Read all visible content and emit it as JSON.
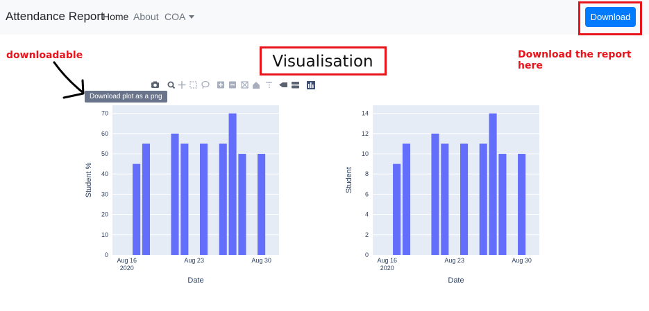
{
  "navbar": {
    "brand": "Attendance Report",
    "links": [
      {
        "label": "Home"
      },
      {
        "label": "About"
      },
      {
        "label": "COA"
      }
    ],
    "download_button": "Download"
  },
  "annotations": {
    "left": "downloadable",
    "right": "Download the report here"
  },
  "page_title": "Visualisation",
  "tooltip": "Download plot as a png",
  "modebar_icons": [
    "camera-icon",
    "zoom-icon",
    "pan-icon",
    "box-select-icon",
    "lasso-icon",
    "zoom-in-icon",
    "zoom-out-icon",
    "autoscale-icon",
    "reset-axes-icon",
    "spike-lines-icon",
    "hover-closest-icon",
    "hover-compare-icon",
    "plotly-logo-icon"
  ],
  "colors": {
    "bar": "#636efa",
    "plot_bg": "#e5ecf6",
    "primary": "#007bff",
    "annotation": "#e8131b"
  },
  "chart_data": [
    {
      "type": "bar",
      "xlabel": "Date",
      "ylabel": "Student %",
      "x": [
        "2020-08-17",
        "2020-08-18",
        "2020-08-21",
        "2020-08-22",
        "2020-08-24",
        "2020-08-26",
        "2020-08-27",
        "2020-08-28",
        "2020-08-30"
      ],
      "values": [
        45,
        55,
        60,
        55,
        55,
        55,
        70,
        50,
        50
      ],
      "ylim": [
        0,
        74
      ],
      "yticks": [
        "0",
        "10",
        "20",
        "30",
        "40",
        "50",
        "60",
        "70"
      ],
      "xticks": [
        [
          "Aug 16",
          "2020"
        ],
        [
          "Aug 23"
        ],
        [
          "Aug 30"
        ]
      ]
    },
    {
      "type": "bar",
      "xlabel": "Date",
      "ylabel": "Student",
      "x": [
        "2020-08-17",
        "2020-08-18",
        "2020-08-21",
        "2020-08-22",
        "2020-08-24",
        "2020-08-26",
        "2020-08-27",
        "2020-08-28",
        "2020-08-30"
      ],
      "values": [
        9,
        11,
        12,
        11,
        11,
        11,
        14,
        10,
        10
      ],
      "ylim": [
        0,
        14.8
      ],
      "yticks": [
        "0",
        "2",
        "4",
        "6",
        "8",
        "10",
        "12",
        "14"
      ],
      "xticks": [
        [
          "Aug 16",
          "2020"
        ],
        [
          "Aug 23"
        ],
        [
          "Aug 30"
        ]
      ]
    }
  ]
}
